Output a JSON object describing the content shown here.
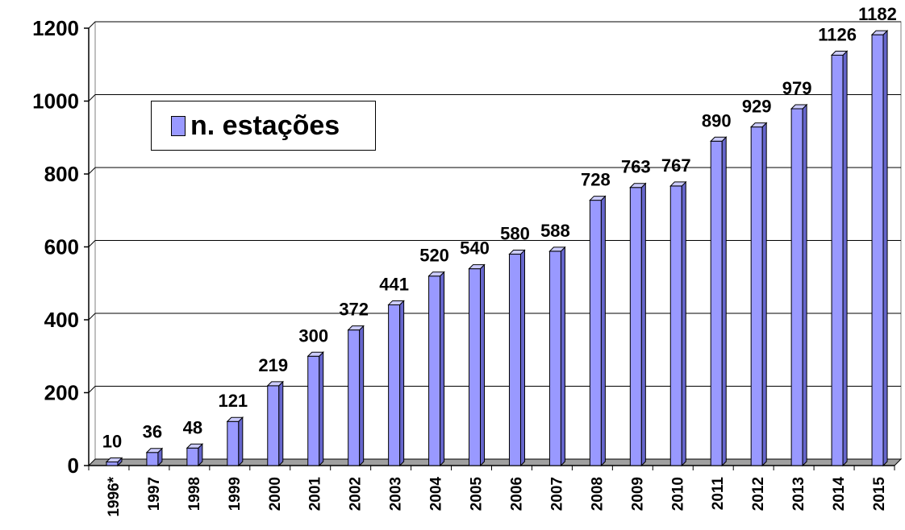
{
  "chart_data": {
    "type": "bar",
    "categories": [
      "1996*",
      "1997",
      "1998",
      "1999",
      "2000",
      "2001",
      "2002",
      "2003",
      "2004",
      "2005",
      "2006",
      "2007",
      "2008",
      "2009",
      "2010",
      "2011",
      "2012",
      "2013",
      "2014",
      "2015"
    ],
    "series": [
      {
        "name": "n. estações",
        "values": [
          10,
          36,
          48,
          121,
          219,
          300,
          372,
          441,
          520,
          540,
          580,
          588,
          728,
          763,
          767,
          890,
          929,
          979,
          1126,
          1182
        ]
      }
    ],
    "ylim": [
      0,
      1200
    ],
    "yticks": [
      "0",
      "200",
      "400",
      "600",
      "800",
      "1000",
      "1200"
    ],
    "grid": true,
    "legend_position": "top-left",
    "bar_color": "#9999ff",
    "data_labels": [
      "10",
      "36",
      "48",
      "121",
      "219",
      "300",
      "372",
      "441",
      "520",
      "540",
      "580",
      "588",
      "728",
      "763",
      "767",
      "890",
      "929",
      "979",
      "1126",
      "1182"
    ]
  },
  "legend": {
    "label": "n. estações"
  }
}
